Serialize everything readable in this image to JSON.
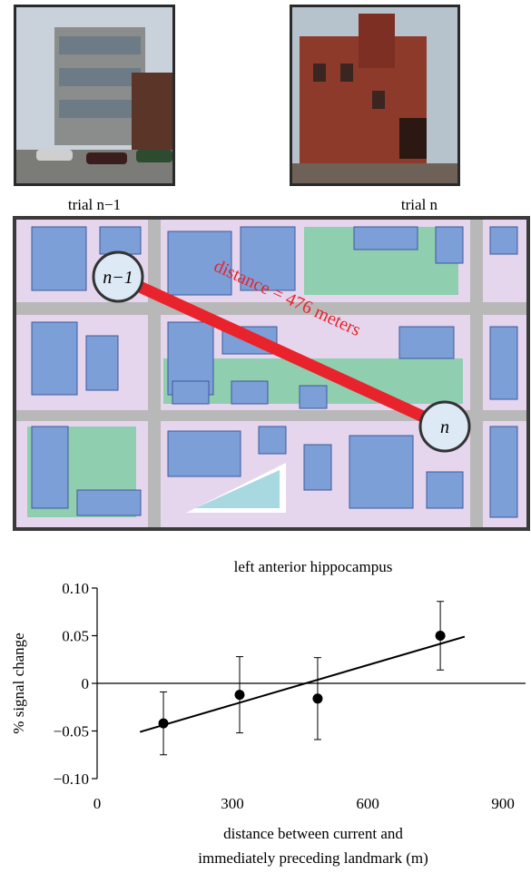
{
  "photos": {
    "left_caption": "trial n−1",
    "right_caption": "trial n"
  },
  "map": {
    "start_label": "n−1",
    "end_label": "n",
    "distance_label": "distance = 476 meters"
  },
  "chart_data": {
    "type": "scatter",
    "title": "left anterior hippocampus",
    "x_label": [
      "distance between current and",
      "immediately preceding landmark (m)"
    ],
    "y_label": "% signal change",
    "x": [
      147,
      316,
      489,
      761
    ],
    "values": [
      -0.042,
      -0.012,
      -0.016,
      0.05
    ],
    "errors": [
      0.033,
      0.04,
      0.043,
      0.036
    ],
    "fit": {
      "x": [
        95,
        815
      ],
      "y": [
        -0.051,
        0.049
      ]
    },
    "color": "#000000",
    "xlim": [
      0,
      950
    ],
    "ylim": [
      -0.1,
      0.1
    ],
    "xticks": [
      0,
      300,
      600,
      900
    ],
    "yticks": [
      {
        "value": 0.1,
        "label": "0.10"
      },
      {
        "value": 0.05,
        "label": "0.05"
      },
      0,
      {
        "value": -0.05,
        "label": "−0.05"
      },
      {
        "value": -0.1,
        "label": "−0.10"
      }
    ]
  }
}
